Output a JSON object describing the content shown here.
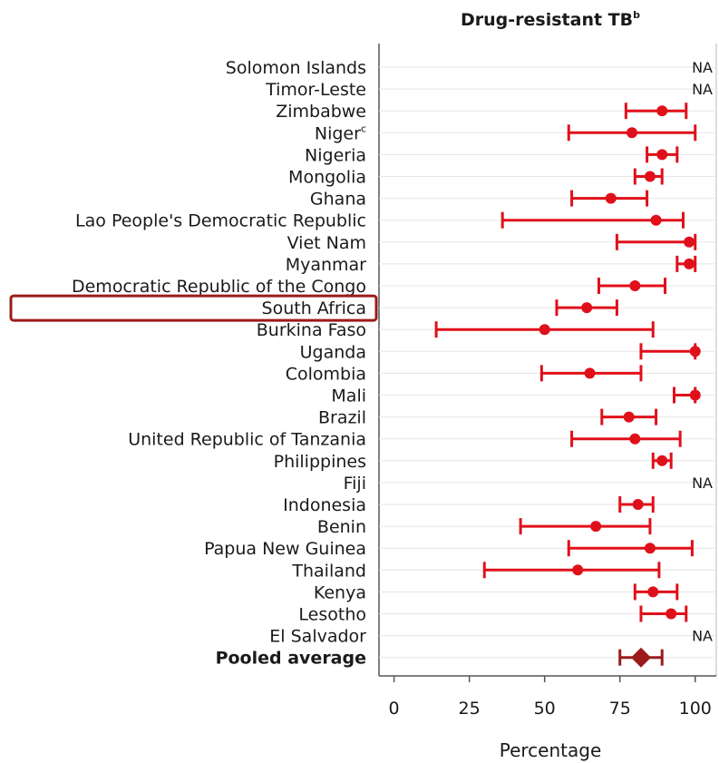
{
  "chart_data": {
    "type": "forest",
    "title": "Drug-resistant TB",
    "title_superscript": "b",
    "xlabel": "Percentage",
    "xlim": [
      -5,
      107
    ],
    "xticks": [
      0,
      25,
      50,
      75,
      100
    ],
    "highlighted_category": "South Africa",
    "colors": {
      "point": "#e0101a",
      "pooled": "#9b1b1b",
      "highlight_box": "#9b1b1b",
      "axis": "#555555"
    },
    "rows": [
      {
        "label": "Solomon Islands",
        "value": null,
        "na": "NA"
      },
      {
        "label": "Timor-Leste",
        "value": null,
        "na": "NA"
      },
      {
        "label": "Zimbabwe",
        "value": 89,
        "low": 77,
        "high": 97
      },
      {
        "label": "Niger",
        "sup": "c",
        "value": 79,
        "low": 58,
        "high": 100
      },
      {
        "label": "Nigeria",
        "value": 89,
        "low": 84,
        "high": 94
      },
      {
        "label": "Mongolia",
        "value": 85,
        "low": 80,
        "high": 89
      },
      {
        "label": "Ghana",
        "value": 72,
        "low": 59,
        "high": 84
      },
      {
        "label": "Lao People's Democratic Republic",
        "value": 87,
        "low": 36,
        "high": 96
      },
      {
        "label": "Viet Nam",
        "value": 98,
        "low": 74,
        "high": 100
      },
      {
        "label": "Myanmar",
        "value": 98,
        "low": 94,
        "high": 100
      },
      {
        "label": "Democratic Republic of the Congo",
        "value": 80,
        "low": 68,
        "high": 90
      },
      {
        "label": "South Africa",
        "value": 64,
        "low": 54,
        "high": 74
      },
      {
        "label": "Burkina Faso",
        "value": 50,
        "low": 14,
        "high": 86
      },
      {
        "label": "Uganda",
        "value": 100,
        "low": 82,
        "high": 100
      },
      {
        "label": "Colombia",
        "value": 65,
        "low": 49,
        "high": 82
      },
      {
        "label": "Mali",
        "value": 100,
        "low": 93,
        "high": 100
      },
      {
        "label": "Brazil",
        "value": 78,
        "low": 69,
        "high": 87
      },
      {
        "label": "United Republic of Tanzania",
        "value": 80,
        "low": 59,
        "high": 95
      },
      {
        "label": "Philippines",
        "value": 89,
        "low": 86,
        "high": 92
      },
      {
        "label": "Fiji",
        "value": null,
        "na": "NA"
      },
      {
        "label": "Indonesia",
        "value": 81,
        "low": 75,
        "high": 86
      },
      {
        "label": "Benin",
        "value": 67,
        "low": 42,
        "high": 85
      },
      {
        "label": "Papua New Guinea",
        "value": 85,
        "low": 58,
        "high": 99
      },
      {
        "label": "Thailand",
        "value": 61,
        "low": 30,
        "high": 88
      },
      {
        "label": "Kenya",
        "value": 86,
        "low": 80,
        "high": 94
      },
      {
        "label": "Lesotho",
        "value": 92,
        "low": 82,
        "high": 97
      },
      {
        "label": "El Salvador",
        "value": null,
        "na": "NA"
      },
      {
        "label": "Pooled average",
        "value": 82,
        "low": 75,
        "high": 89,
        "pooled": true
      }
    ]
  }
}
